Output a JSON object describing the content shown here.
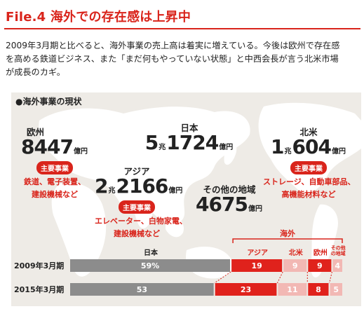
{
  "header": {
    "title": "File.4 海外での存在感は上昇中"
  },
  "intro": {
    "line1": "2009年3月期と比べると、海外事業の売上高は着実に増えている。今後は欧州で存在感",
    "line2": "を高める鉄道ビジネス、また「まだ何もやっていない状態」と中西会長が言う北米市場",
    "line3": "が成長のカギ。"
  },
  "section": {
    "label": "●海外事業の現状"
  },
  "regions": {
    "japan": {
      "name": "日本",
      "prefix": "5",
      "unit1": "兆",
      "main": "1724",
      "unit2": "億円"
    },
    "europe": {
      "name": "欧州",
      "main": "8447",
      "unit2": "億円",
      "badge": "主要事業",
      "biz1": "鉄道、電子装置、",
      "biz2": "建設機械など"
    },
    "asia": {
      "name": "アジア",
      "prefix": "2",
      "unit1": "兆",
      "main": "2166",
      "unit2": "億円",
      "badge": "主要事業",
      "biz1": "エレベーター、白物家電、",
      "biz2": "建設機械など"
    },
    "na": {
      "name": "北米",
      "prefix": "1",
      "unit1": "兆",
      "main": "604",
      "unit2": "億円",
      "badge": "主要事業",
      "biz1": "ストレージ、自動車部品、",
      "biz2": "高機能材料など"
    },
    "other": {
      "name": "その他の地域",
      "main": "4675",
      "unit2": "億円"
    }
  },
  "colors": {
    "accent": "#d9241b",
    "japan_bar": "#8c8c8c",
    "asia_bar": "#e0221c",
    "na_bar": "#f2b8b4",
    "europe_bar": "#e0221c",
    "other_bar": "#f2b8b4",
    "map_bg": "#eeebe6",
    "land": "#ffffff"
  },
  "chart_data": {
    "type": "bar",
    "stacked": true,
    "orientation": "horizontal",
    "group_label": "海外",
    "categories": [
      "2009年3月期",
      "2015年3月期"
    ],
    "series": [
      {
        "name": "日本",
        "values": [
          59,
          53
        ]
      },
      {
        "name": "アジア",
        "values": [
          19,
          23
        ]
      },
      {
        "name": "北米",
        "values": [
          9,
          11
        ]
      },
      {
        "name": "欧州",
        "values": [
          9,
          8
        ]
      },
      {
        "name": "その他の地域",
        "values": [
          4,
          5
        ]
      }
    ],
    "data_labels": [
      [
        "59%",
        "19",
        "9",
        "9",
        "4"
      ],
      [
        "53",
        "23",
        "11",
        "8",
        "5"
      ]
    ],
    "xlim": [
      0,
      100
    ]
  }
}
